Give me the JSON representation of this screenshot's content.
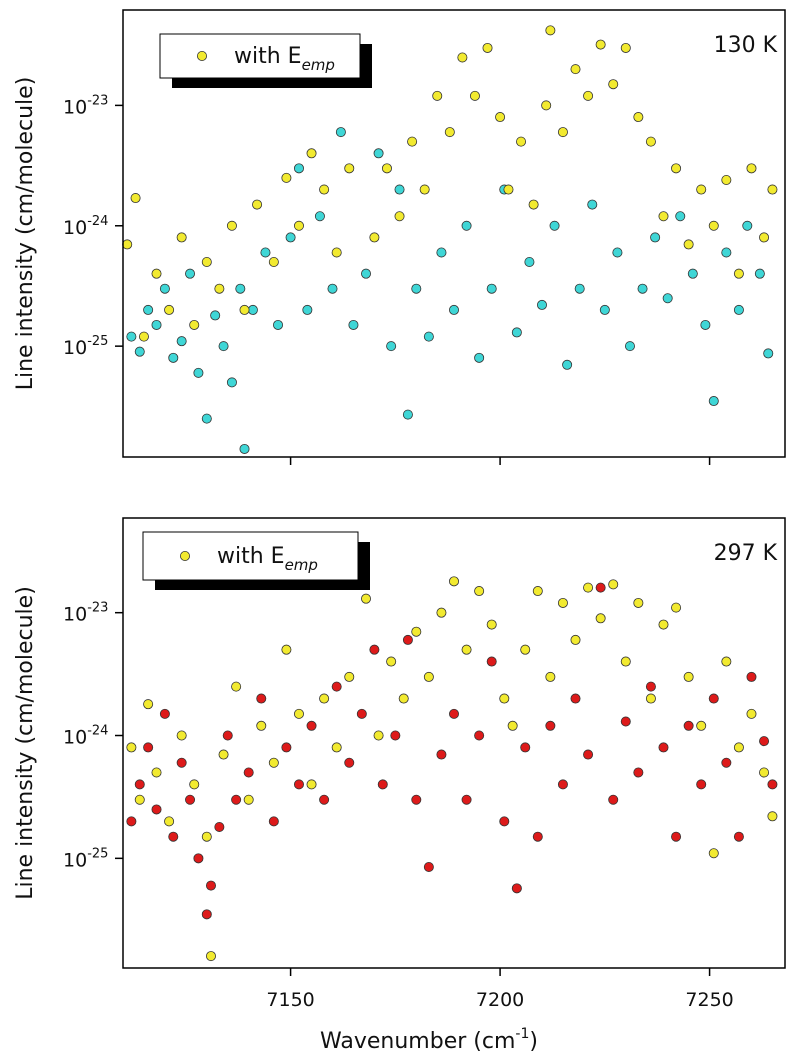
{
  "chart_data": [
    {
      "type": "scatter",
      "annotation": "130 K",
      "ylabel": "Line intensity (cm/molecule)",
      "log_y": true,
      "xlim": [
        7110,
        7268
      ],
      "xticks": [
        7150,
        7200,
        7250
      ],
      "xtick_labels": false,
      "ylim": [
        1.2e-26,
        6.2e-23
      ],
      "yticks": [
        {
          "value": 1e-25,
          "label": "10",
          "exponent": "-25"
        },
        {
          "value": 1e-24,
          "label": "10",
          "exponent": "-24"
        },
        {
          "value": 1e-23,
          "label": "10",
          "exponent": "-23"
        }
      ],
      "series": [
        {
          "color": "#3fd6d6",
          "x": [
            7112,
            7114,
            7116,
            7118,
            7120,
            7122,
            7124,
            7126,
            7128,
            7130,
            7132,
            7134,
            7136,
            7138,
            7139,
            7141,
            7144,
            7147,
            7150,
            7152,
            7154,
            7157,
            7160,
            7162,
            7165,
            7168,
            7171,
            7174,
            7176,
            7178,
            7180,
            7183,
            7186,
            7189,
            7192,
            7195,
            7198,
            7201,
            7204,
            7207,
            7210,
            7213,
            7216,
            7219,
            7222,
            7225,
            7228,
            7231,
            7234,
            7237,
            7240,
            7243,
            7246,
            7249,
            7251,
            7254,
            7257,
            7259,
            7262,
            7264
          ],
          "values": [
            1.2e-25,
            9e-26,
            2e-25,
            1.5e-25,
            3e-25,
            8e-26,
            1.1e-25,
            4e-25,
            6e-26,
            2.5e-26,
            1.8e-25,
            1e-25,
            5e-26,
            3e-25,
            1.4e-26,
            2e-25,
            6e-25,
            1.5e-25,
            8e-25,
            3e-24,
            2e-25,
            1.2e-24,
            3e-25,
            6e-24,
            1.5e-25,
            4e-25,
            4e-24,
            1e-25,
            2e-24,
            2.7e-26,
            3e-25,
            1.2e-25,
            6e-25,
            2e-25,
            1e-24,
            8e-26,
            3e-25,
            2e-24,
            1.3e-25,
            5e-25,
            2.2e-25,
            1e-24,
            7e-26,
            3e-25,
            1.5e-24,
            2e-25,
            6e-25,
            1e-25,
            3e-25,
            8e-25,
            2.5e-25,
            1.2e-24,
            4e-25,
            1.5e-25,
            3.5e-26,
            6e-25,
            2e-25,
            1e-24,
            4e-25,
            8.7e-26
          ]
        },
        {
          "name": "with E",
          "name_sub": "emp",
          "color": "#f2ea30",
          "x": [
            7111,
            7113,
            7115,
            7118,
            7121,
            7124,
            7127,
            7130,
            7133,
            7136,
            7139,
            7142,
            7146,
            7149,
            7152,
            7155,
            7158,
            7161,
            7164,
            7167,
            7170,
            7173,
            7176,
            7179,
            7182,
            7185,
            7188,
            7191,
            7194,
            7197,
            7200,
            7202,
            7205,
            7208,
            7211,
            7212,
            7215,
            7218,
            7221,
            7224,
            7227,
            7230,
            7233,
            7236,
            7239,
            7242,
            7245,
            7248,
            7251,
            7254,
            7257,
            7260,
            7263,
            7265
          ],
          "values": [
            7e-25,
            1.7e-24,
            1.2e-25,
            4e-25,
            2e-25,
            8e-25,
            1.5e-25,
            5e-25,
            3e-25,
            1e-24,
            2e-25,
            1.5e-24,
            5e-25,
            2.5e-24,
            1e-24,
            4e-24,
            2e-24,
            6e-25,
            3e-24,
            1.9e-23,
            8e-25,
            3e-24,
            1.2e-24,
            5e-24,
            2e-24,
            1.2e-23,
            6e-24,
            2.5e-23,
            1.2e-23,
            3e-23,
            8e-24,
            2e-24,
            5e-24,
            1.5e-24,
            1e-23,
            4.2e-23,
            6e-24,
            2e-23,
            1.2e-23,
            3.2e-23,
            1.5e-23,
            3e-23,
            8e-24,
            5e-24,
            1.2e-24,
            3e-24,
            7e-25,
            2e-24,
            1e-24,
            2.4e-24,
            4e-25,
            3e-24,
            8e-25,
            2e-24
          ]
        }
      ]
    },
    {
      "type": "scatter",
      "annotation": "297 K",
      "ylabel": "Line intensity (cm/molecule)",
      "log_y": true,
      "xlabel": {
        "text": "Wavenumber (cm",
        "superscript": "-1",
        "close": ")"
      },
      "xlim": [
        7110,
        7268
      ],
      "xticks": [
        7150,
        7200,
        7250
      ],
      "xtick_labels": true,
      "ylim": [
        1.28e-26,
        5.9e-23
      ],
      "yticks": [
        {
          "value": 1e-25,
          "label": "10",
          "exponent": "-25"
        },
        {
          "value": 1e-24,
          "label": "10",
          "exponent": "-24"
        },
        {
          "value": 1e-23,
          "label": "10",
          "exponent": "-23"
        }
      ],
      "series": [
        {
          "color": "#dd1a1a",
          "x": [
            7112,
            7114,
            7116,
            7118,
            7120,
            7122,
            7124,
            7126,
            7128,
            7130,
            7131,
            7133,
            7135,
            7137,
            7140,
            7143,
            7146,
            7149,
            7152,
            7155,
            7158,
            7161,
            7164,
            7167,
            7170,
            7172,
            7175,
            7178,
            7180,
            7183,
            7186,
            7189,
            7192,
            7195,
            7198,
            7201,
            7204,
            7206,
            7209,
            7212,
            7215,
            7218,
            7221,
            7224,
            7227,
            7230,
            7233,
            7236,
            7239,
            7242,
            7245,
            7248,
            7251,
            7254,
            7257,
            7260,
            7263,
            7265
          ],
          "values": [
            2e-25,
            4e-25,
            8e-25,
            2.5e-25,
            1.5e-24,
            1.5e-25,
            6e-25,
            3e-25,
            1e-25,
            3.5e-26,
            6e-26,
            1.8e-25,
            1e-24,
            3e-25,
            5e-25,
            2e-24,
            2e-25,
            8e-25,
            4e-25,
            1.2e-24,
            3e-25,
            2.5e-24,
            6e-25,
            1.5e-24,
            5e-24,
            4e-25,
            1e-24,
            6e-24,
            3e-25,
            8.5e-26,
            7e-25,
            1.5e-24,
            3e-25,
            1e-24,
            4e-24,
            2e-25,
            5.7e-26,
            8e-25,
            1.5e-25,
            1.2e-24,
            4e-25,
            2e-24,
            7e-25,
            1.6e-23,
            3e-25,
            1.3e-24,
            5e-25,
            2.5e-24,
            8e-25,
            1.5e-25,
            1.2e-24,
            4e-25,
            2e-24,
            6e-25,
            1.5e-25,
            3e-24,
            9e-25,
            4e-25
          ]
        },
        {
          "name": "with E",
          "name_sub": "emp",
          "color": "#f2ea30",
          "x": [
            7112,
            7114,
            7116,
            7118,
            7121,
            7124,
            7127,
            7130,
            7131,
            7134,
            7137,
            7140,
            7143,
            7146,
            7149,
            7152,
            7155,
            7158,
            7161,
            7164,
            7168,
            7171,
            7174,
            7177,
            7180,
            7183,
            7186,
            7189,
            7192,
            7195,
            7198,
            7201,
            7203,
            7206,
            7209,
            7212,
            7215,
            7218,
            7221,
            7224,
            7227,
            7230,
            7233,
            7236,
            7239,
            7242,
            7245,
            7248,
            7251,
            7254,
            7257,
            7260,
            7263,
            7265
          ],
          "values": [
            8e-25,
            3e-25,
            1.8e-24,
            5e-25,
            2e-25,
            1e-24,
            4e-25,
            1.5e-25,
            1.6e-26,
            7e-25,
            2.5e-24,
            3e-25,
            1.2e-24,
            6e-25,
            5e-24,
            1.5e-24,
            4e-25,
            2e-24,
            8e-25,
            3e-24,
            1.3e-23,
            1e-24,
            4e-24,
            2e-24,
            7e-24,
            3e-24,
            1e-23,
            1.8e-23,
            5e-24,
            1.5e-23,
            8e-24,
            2e-24,
            1.2e-24,
            5e-24,
            1.5e-23,
            3e-24,
            1.2e-23,
            6e-24,
            1.6e-23,
            9e-24,
            1.7e-23,
            4e-24,
            1.2e-23,
            2e-24,
            8e-24,
            1.1e-23,
            3e-24,
            1.2e-24,
            1.1e-25,
            4e-24,
            8e-25,
            1.5e-24,
            5e-25,
            2.2e-25
          ]
        }
      ]
    }
  ]
}
